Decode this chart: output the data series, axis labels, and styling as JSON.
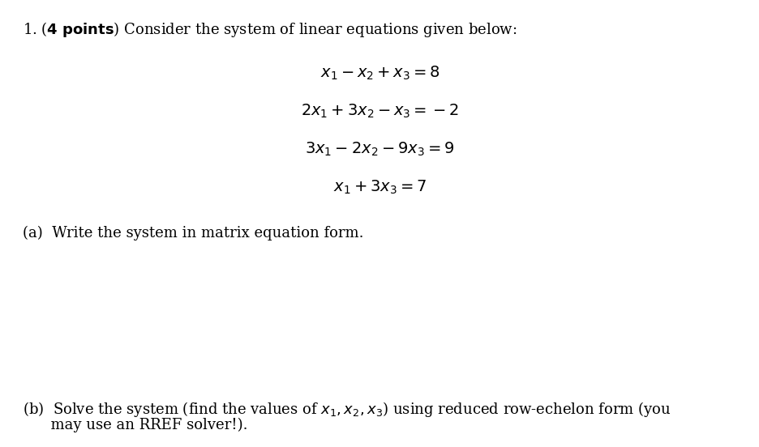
{
  "background_color": "#ffffff",
  "figsize": [
    9.37,
    5.52
  ],
  "dpi": 100,
  "header_text": "1. (\\textbf{4 points}) Consider the system of linear equations given below:",
  "equations": [
    "$x_1 - x_2 + x_3 = 8$",
    "$2x_1 + 3x_2 - x_3 = -2$",
    "$3x_1 - 2x_2 - 9x_3 = 9$",
    "$x_1 + 3x_3 = 7$"
  ],
  "part_a": "(a)  Write the system in matrix equation form.",
  "part_b_line1": "(b)  Solve the system (find the values of $x_1, x_2, x_3$) using reduced row-echelon form (you",
  "part_b_line2": "      may use an RREF solver!).",
  "text_color": "#000000",
  "font_size_header": 13,
  "font_size_eq": 14,
  "font_size_parts": 13
}
